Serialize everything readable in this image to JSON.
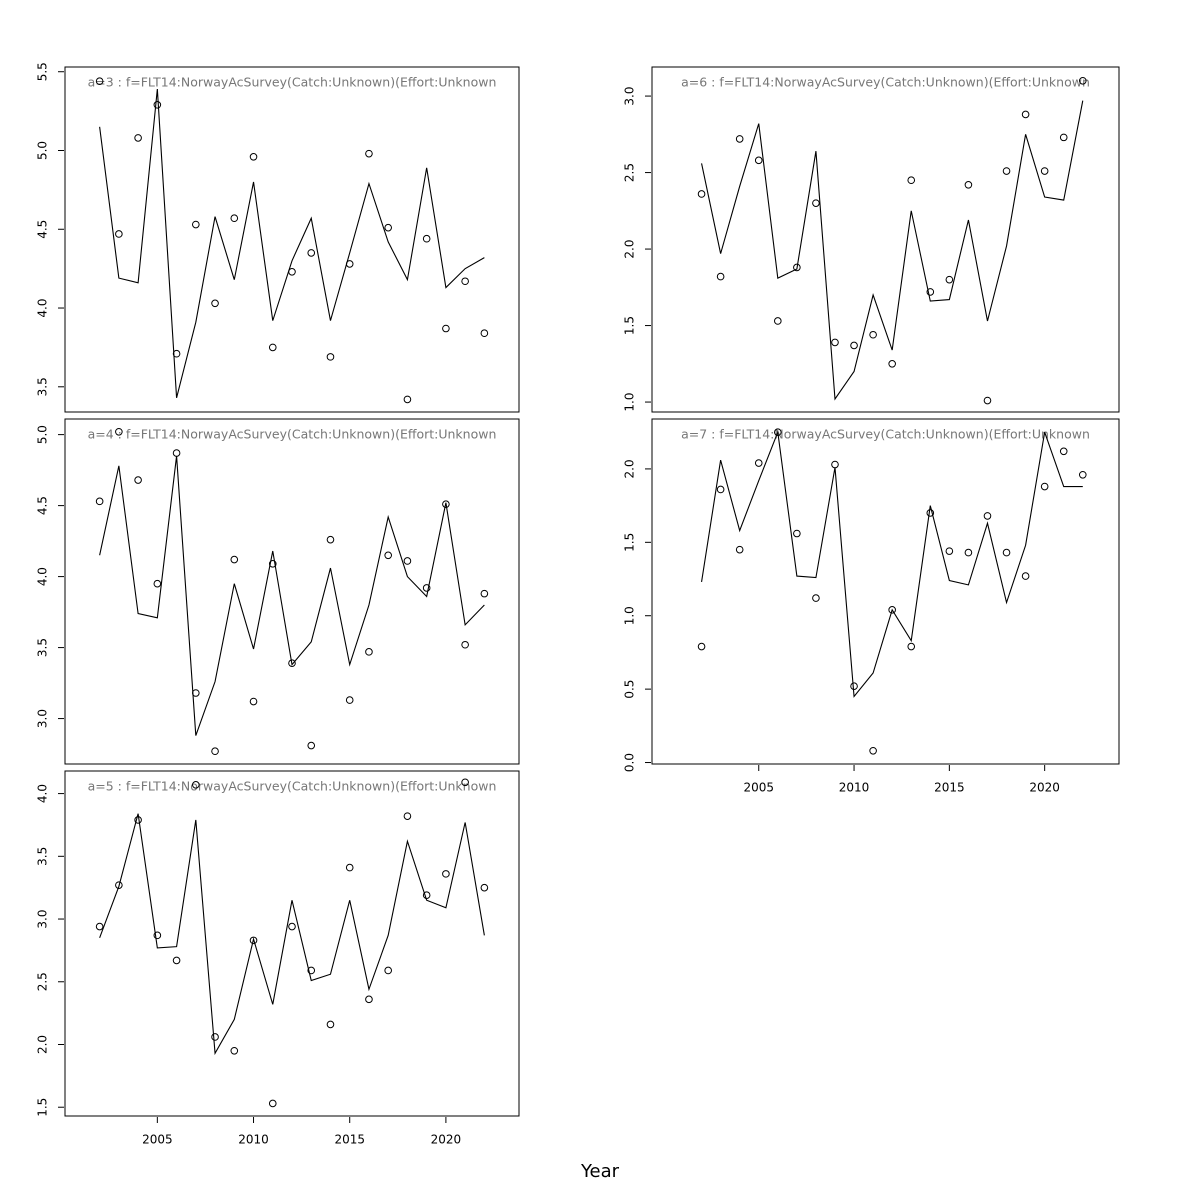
{
  "xlabel": "Year",
  "chart_data": [
    {
      "type": "line",
      "title": "a=3  :  f=FLT14:NorwayAcSurvey(Catch:Unknown)(Effort:Unknown",
      "x": [
        2002,
        2003,
        2004,
        2005,
        2006,
        2007,
        2008,
        2009,
        2010,
        2011,
        2012,
        2013,
        2014,
        2015,
        2016,
        2017,
        2018,
        2019,
        2020,
        2021,
        2022
      ],
      "xlim": [
        2000.2,
        2023.8
      ],
      "ylim": [
        3.34,
        5.53
      ],
      "yticks": [
        3.5,
        {
          "value": 4,
          "label": "4.0"
        },
        4.5,
        {
          "value": 5,
          "label": "5.0"
        },
        5.5
      ],
      "series": [
        {
          "mode": "points",
          "color": "#000000",
          "values": [
            5.44,
            4.47,
            5.08,
            5.29,
            3.71,
            4.53,
            4.03,
            4.57,
            4.96,
            3.75,
            4.23,
            4.35,
            3.69,
            4.28,
            4.98,
            4.51,
            3.42,
            4.44,
            3.87,
            4.17,
            3.84
          ]
        },
        {
          "mode": "line",
          "color": "#000000",
          "values": [
            5.15,
            4.19,
            4.16,
            5.39,
            3.43,
            3.91,
            4.58,
            4.18,
            4.8,
            3.92,
            4.3,
            4.57,
            3.92,
            4.35,
            4.79,
            4.42,
            4.18,
            4.89,
            4.13,
            4.25,
            4.32
          ]
        }
      ]
    },
    {
      "type": "line",
      "title": "a=4  :  f=FLT14:NorwayAcSurvey(Catch:Unknown)(Effort:Unknown",
      "x": [
        2002,
        2003,
        2004,
        2005,
        2006,
        2007,
        2008,
        2009,
        2010,
        2011,
        2012,
        2013,
        2014,
        2015,
        2016,
        2017,
        2018,
        2019,
        2020,
        2021,
        2022
      ],
      "xlim": [
        2000.2,
        2023.8
      ],
      "ylim": [
        2.68,
        5.11
      ],
      "yticks": [
        {
          "value": 3,
          "label": "3.0"
        },
        3.5,
        {
          "value": 4,
          "label": "4.0"
        },
        4.5,
        {
          "value": 5,
          "label": "5.0"
        }
      ],
      "series": [
        {
          "mode": "points",
          "color": "#000000",
          "values": [
            4.53,
            5.02,
            4.68,
            3.95,
            4.87,
            3.18,
            2.77,
            4.12,
            3.12,
            4.09,
            3.39,
            2.81,
            4.26,
            3.13,
            3.47,
            4.15,
            4.11,
            3.92,
            4.51,
            3.52,
            3.88
          ]
        },
        {
          "mode": "line",
          "color": "#000000",
          "values": [
            4.15,
            4.78,
            3.74,
            3.71,
            4.85,
            2.88,
            3.26,
            3.95,
            3.49,
            4.18,
            3.38,
            3.54,
            4.06,
            3.38,
            3.8,
            4.42,
            4.0,
            3.86,
            4.52,
            3.66,
            3.8
          ]
        }
      ]
    },
    {
      "type": "line",
      "title": "a=5  :  f=FLT14:NorwayAcSurvey(Catch:Unknown)(Effort:Unknown",
      "x": [
        2002,
        2003,
        2004,
        2005,
        2006,
        2007,
        2008,
        2009,
        2010,
        2011,
        2012,
        2013,
        2014,
        2015,
        2016,
        2017,
        2018,
        2019,
        2020,
        2021,
        2022
      ],
      "xlim": [
        2000.2,
        2023.8
      ],
      "ylim": [
        1.43,
        4.18
      ],
      "xticks": [
        2005,
        2010,
        2015,
        2020
      ],
      "yticks": [
        1.5,
        {
          "value": 2,
          "label": "2.0"
        },
        2.5,
        {
          "value": 3,
          "label": "3.0"
        },
        3.5,
        {
          "value": 4,
          "label": "4.0"
        }
      ],
      "series": [
        {
          "mode": "points",
          "color": "#000000",
          "values": [
            2.94,
            3.27,
            3.79,
            2.87,
            2.67,
            4.07,
            2.06,
            1.95,
            2.83,
            1.53,
            2.94,
            2.59,
            2.16,
            3.41,
            2.36,
            2.59,
            3.82,
            3.19,
            3.36,
            4.09,
            3.25
          ]
        },
        {
          "mode": "line",
          "color": "#000000",
          "values": [
            2.85,
            3.26,
            3.84,
            2.77,
            2.78,
            3.79,
            1.93,
            2.2,
            2.84,
            2.32,
            3.15,
            2.51,
            2.56,
            3.15,
            2.44,
            2.87,
            3.62,
            3.15,
            3.09,
            3.77,
            2.87
          ]
        }
      ]
    },
    {
      "type": "line",
      "title": "a=6  :  f=FLT14:NorwayAcSurvey(Catch:Unknown)(Effort:Unknown",
      "x": [
        2002,
        2003,
        2004,
        2005,
        2006,
        2007,
        2008,
        2009,
        2010,
        2011,
        2012,
        2013,
        2014,
        2015,
        2016,
        2017,
        2018,
        2019,
        2020,
        2021,
        2022
      ],
      "xlim": [
        1999.4,
        2023.9
      ],
      "ylim": [
        0.935,
        3.19
      ],
      "yticks": [
        {
          "value": 1,
          "label": "1.0"
        },
        1.5,
        {
          "value": 2,
          "label": "2.0"
        },
        2.5,
        {
          "value": 3,
          "label": "3.0"
        }
      ],
      "series": [
        {
          "mode": "points",
          "color": "#000000",
          "values": [
            2.36,
            1.82,
            2.72,
            2.58,
            1.53,
            1.88,
            2.3,
            1.39,
            1.37,
            1.44,
            1.25,
            2.45,
            1.72,
            1.8,
            2.42,
            1.01,
            2.51,
            2.88,
            2.51,
            2.73,
            3.1
          ]
        },
        {
          "mode": "line",
          "color": "#000000",
          "values": [
            2.56,
            1.97,
            2.41,
            2.82,
            1.81,
            1.87,
            2.64,
            1.02,
            1.2,
            1.7,
            1.34,
            2.25,
            1.66,
            1.67,
            2.19,
            1.53,
            2.02,
            2.75,
            2.34,
            2.32,
            2.97
          ]
        }
      ]
    },
    {
      "type": "line",
      "title": "a=7  :  f=FLT14:NorwayAcSurvey(Catch:Unknown)(Effort:Unknown",
      "x": [
        2002,
        2003,
        2004,
        2005,
        2006,
        2007,
        2008,
        2009,
        2010,
        2011,
        2012,
        2013,
        2014,
        2015,
        2016,
        2017,
        2018,
        2019,
        2020,
        2021,
        2022
      ],
      "xlim": [
        1999.4,
        2023.9
      ],
      "ylim": [
        -0.01,
        2.34
      ],
      "xticks": [
        2005,
        2010,
        2015,
        2020
      ],
      "yticks": [
        {
          "value": 0,
          "label": "0.0"
        },
        0.5,
        {
          "value": 1,
          "label": "1.0"
        },
        1.5,
        {
          "value": 2,
          "label": "2.0"
        }
      ],
      "series": [
        {
          "mode": "points",
          "color": "#000000",
          "values": [
            0.79,
            1.86,
            1.45,
            2.04,
            2.25,
            1.56,
            1.12,
            2.03,
            0.52,
            0.08,
            1.04,
            0.79,
            1.7,
            1.44,
            1.43,
            1.68,
            1.43,
            1.27,
            1.88,
            2.12,
            1.96
          ]
        },
        {
          "mode": "line",
          "color": "#000000",
          "values": [
            1.23,
            2.06,
            1.58,
            1.92,
            2.25,
            1.27,
            1.26,
            2.01,
            0.45,
            0.61,
            1.04,
            0.83,
            1.75,
            1.24,
            1.21,
            1.63,
            1.09,
            1.48,
            2.25,
            1.88,
            1.88
          ]
        }
      ]
    }
  ]
}
